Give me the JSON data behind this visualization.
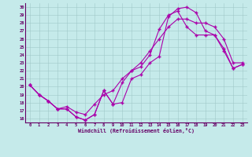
{
  "xlabel": "Windchill (Refroidissement éolien,°C)",
  "xlim": [
    -0.5,
    23.5
  ],
  "ylim": [
    15.5,
    30.5
  ],
  "yticks": [
    16,
    17,
    18,
    19,
    20,
    21,
    22,
    23,
    24,
    25,
    26,
    27,
    28,
    29,
    30
  ],
  "xticks": [
    0,
    1,
    2,
    3,
    4,
    5,
    6,
    7,
    8,
    9,
    10,
    11,
    12,
    13,
    14,
    15,
    16,
    17,
    18,
    19,
    20,
    21,
    22,
    23
  ],
  "bg_color": "#c5eaea",
  "line_color": "#aa00aa",
  "line1_x": [
    0,
    1,
    2,
    3,
    4,
    5,
    6,
    7,
    8,
    9,
    10,
    11,
    12,
    13,
    14,
    15,
    16,
    17,
    18,
    19,
    20,
    21,
    22,
    23
  ],
  "line1_y": [
    20.2,
    19.0,
    18.2,
    17.2,
    17.2,
    16.2,
    15.8,
    16.5,
    19.5,
    17.8,
    18.0,
    21.0,
    21.5,
    23.0,
    23.8,
    28.8,
    29.8,
    30.0,
    29.3,
    27.0,
    26.5,
    24.8,
    22.3,
    22.8
  ],
  "line2_x": [
    0,
    1,
    2,
    3,
    4,
    5,
    6,
    7,
    8,
    9,
    10,
    11,
    12,
    13,
    14,
    15,
    16,
    17,
    18,
    19,
    20,
    21,
    22,
    23
  ],
  "line2_y": [
    20.2,
    19.0,
    18.2,
    17.2,
    17.2,
    16.2,
    15.8,
    16.5,
    19.5,
    17.8,
    20.5,
    22.0,
    22.5,
    24.0,
    27.2,
    29.0,
    29.5,
    27.5,
    26.5,
    26.5,
    26.5,
    24.5,
    22.3,
    22.8
  ],
  "line3_x": [
    0,
    1,
    2,
    3,
    4,
    5,
    6,
    7,
    8,
    9,
    10,
    11,
    12,
    13,
    14,
    15,
    16,
    17,
    18,
    19,
    20,
    21,
    22,
    23
  ],
  "line3_y": [
    20.2,
    19.0,
    18.2,
    17.2,
    17.5,
    16.8,
    16.5,
    17.8,
    19.0,
    19.5,
    21.0,
    22.0,
    23.0,
    24.5,
    26.0,
    27.5,
    28.5,
    28.5,
    28.0,
    28.0,
    27.5,
    26.0,
    23.0,
    23.0
  ]
}
